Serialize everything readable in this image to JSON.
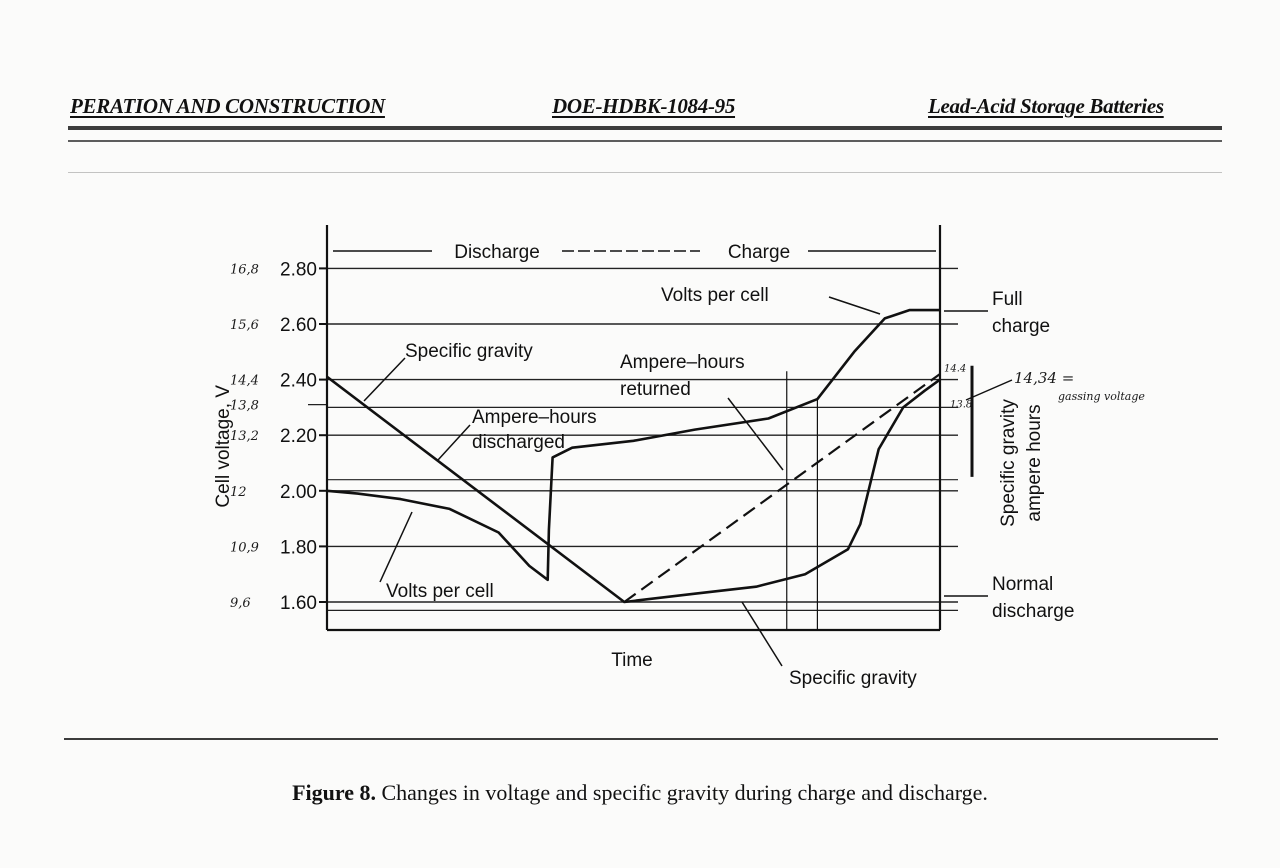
{
  "header": {
    "left": "PERATION AND CONSTRUCTION",
    "center": "DOE-HDBK-1084-95",
    "right": "Lead-Acid Storage Batteries"
  },
  "caption": {
    "label": "Figure 8.",
    "text": "Changes in voltage and specific gravity during charge and discharge."
  },
  "chart_data": {
    "type": "line",
    "title": "",
    "xlabel": "Time",
    "ylabel": "Cell voltage, V",
    "ylabel_right": [
      "Specific gravity",
      "ampere hours"
    ],
    "ylim": [
      1.5,
      2.9
    ],
    "xlim": [
      0,
      1
    ],
    "yticks": [
      1.6,
      1.8,
      2.0,
      2.2,
      2.4,
      2.6,
      2.8
    ],
    "ytick_labels": [
      "1.60",
      "1.80",
      "2.00",
      "2.20",
      "2.40",
      "2.60",
      "2.80"
    ],
    "phase_labels": [
      "Discharge",
      "Charge"
    ],
    "series": [
      {
        "name": "Volts per cell",
        "style": "solid",
        "points": [
          [
            0,
            2.0
          ],
          [
            0.05,
            1.99
          ],
          [
            0.12,
            1.97
          ],
          [
            0.2,
            1.935
          ],
          [
            0.28,
            1.85
          ],
          [
            0.33,
            1.73
          ],
          [
            0.36,
            1.68
          ],
          [
            0.362,
            1.86
          ],
          [
            0.368,
            2.12
          ],
          [
            0.4,
            2.155
          ],
          [
            0.5,
            2.18
          ],
          [
            0.6,
            2.22
          ],
          [
            0.72,
            2.26
          ],
          [
            0.8,
            2.33
          ],
          [
            0.86,
            2.5
          ],
          [
            0.91,
            2.62
          ],
          [
            0.95,
            2.65
          ],
          [
            1.0,
            2.65
          ]
        ]
      },
      {
        "name": "Specific gravity",
        "style": "solid",
        "points": [
          [
            0,
            2.41
          ],
          [
            0.485,
            1.6
          ],
          [
            0.6,
            1.63
          ],
          [
            0.7,
            1.655
          ],
          [
            0.78,
            1.7
          ],
          [
            0.85,
            1.79
          ],
          [
            0.87,
            1.88
          ],
          [
            0.9,
            2.15
          ],
          [
            0.94,
            2.3
          ],
          [
            0.975,
            2.36
          ],
          [
            1.0,
            2.4
          ]
        ]
      },
      {
        "name": "Ampere-hours",
        "style": "dashed",
        "points": [
          [
            0.485,
            1.6
          ],
          [
            1.0,
            2.42
          ]
        ]
      }
    ],
    "annotations": [
      "Volts per cell",
      "Full",
      "charge",
      "Specific gravity",
      "Ampere–hours",
      "returned",
      "Ampere–hours",
      "discharged",
      "Volts per cell",
      "Normal",
      "discharge",
      "Specific gravity"
    ],
    "handwritten": {
      "left_marks": [
        "16,8",
        "15,6",
        "14,4",
        "13,8",
        "13,2",
        "12",
        "10,9",
        "9,6"
      ],
      "right_marks": [
        "14.4",
        "13.8"
      ],
      "note_line1": "14,34 =",
      "note_line2": "gassing voltage"
    }
  }
}
